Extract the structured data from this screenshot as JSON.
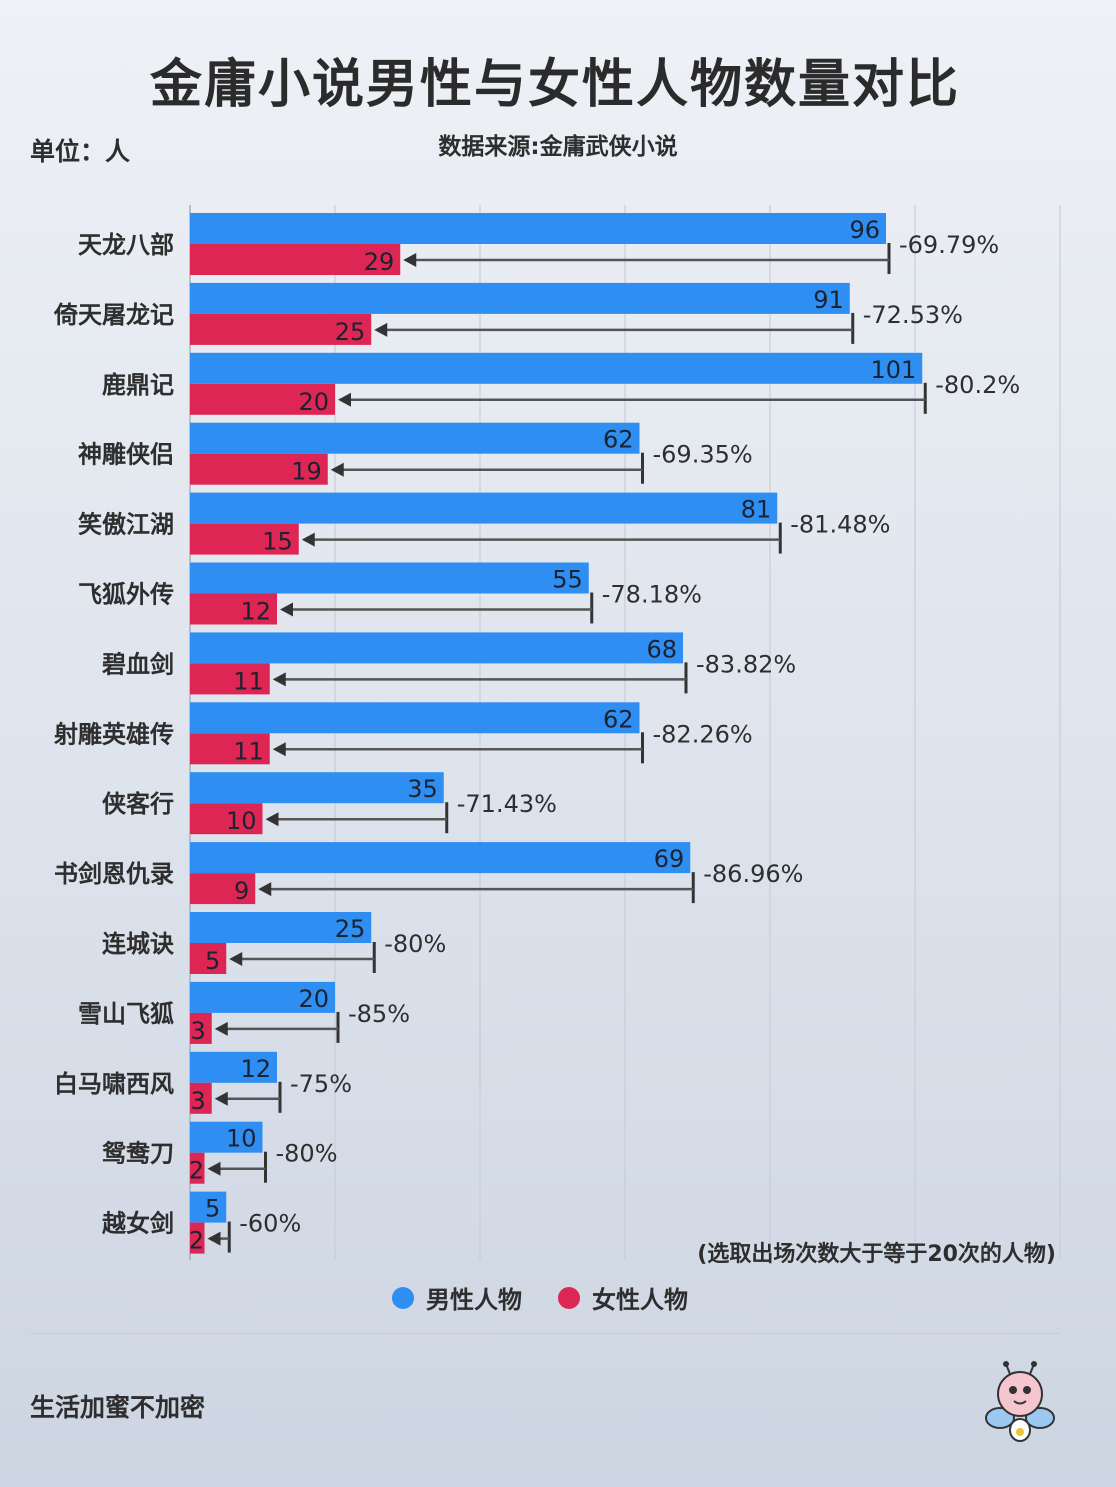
{
  "title": "金庸小说男性与女性人物数量对比",
  "unit_label": "单位：人",
  "source_label": "数据来源:金庸武侠小说",
  "note": "(选取出场次数大于等于20次的人物)",
  "footer": "生活加蜜不加密",
  "colors": {
    "male": "#2f8ef2",
    "female": "#de2654",
    "arrow": "#555555",
    "grid": "#c8ced8",
    "text": "#2e2e2e"
  },
  "chart_data": {
    "type": "bar",
    "orientation": "horizontal",
    "categories": [
      "天龙八部",
      "倚天屠龙记",
      "鹿鼎记",
      "神雕侠侣",
      "笑傲江湖",
      "飞狐外传",
      "碧血剑",
      "射雕英雄传",
      "侠客行",
      "书剑恩仇录",
      "连城诀",
      "雪山飞狐",
      "白马啸西风",
      "鸳鸯刀",
      "越女剑"
    ],
    "series": [
      {
        "name": "男性人物",
        "values": [
          96,
          91,
          101,
          62,
          81,
          55,
          68,
          62,
          35,
          69,
          25,
          20,
          12,
          10,
          5
        ]
      },
      {
        "name": "女性人物",
        "values": [
          29,
          25,
          20,
          19,
          15,
          12,
          11,
          11,
          10,
          9,
          5,
          3,
          3,
          2,
          2
        ]
      }
    ],
    "change_labels": [
      "-69.79%",
      "-72.53%",
      "-80.2%",
      "-69.35%",
      "-81.48%",
      "-78.18%",
      "-83.82%",
      "-82.26%",
      "-71.43%",
      "-86.96%",
      "-80%",
      "-85%",
      "-75%",
      "-80%",
      "-60%"
    ],
    "xlim": [
      0,
      120
    ],
    "grid": true,
    "legend_position": "bottom"
  }
}
